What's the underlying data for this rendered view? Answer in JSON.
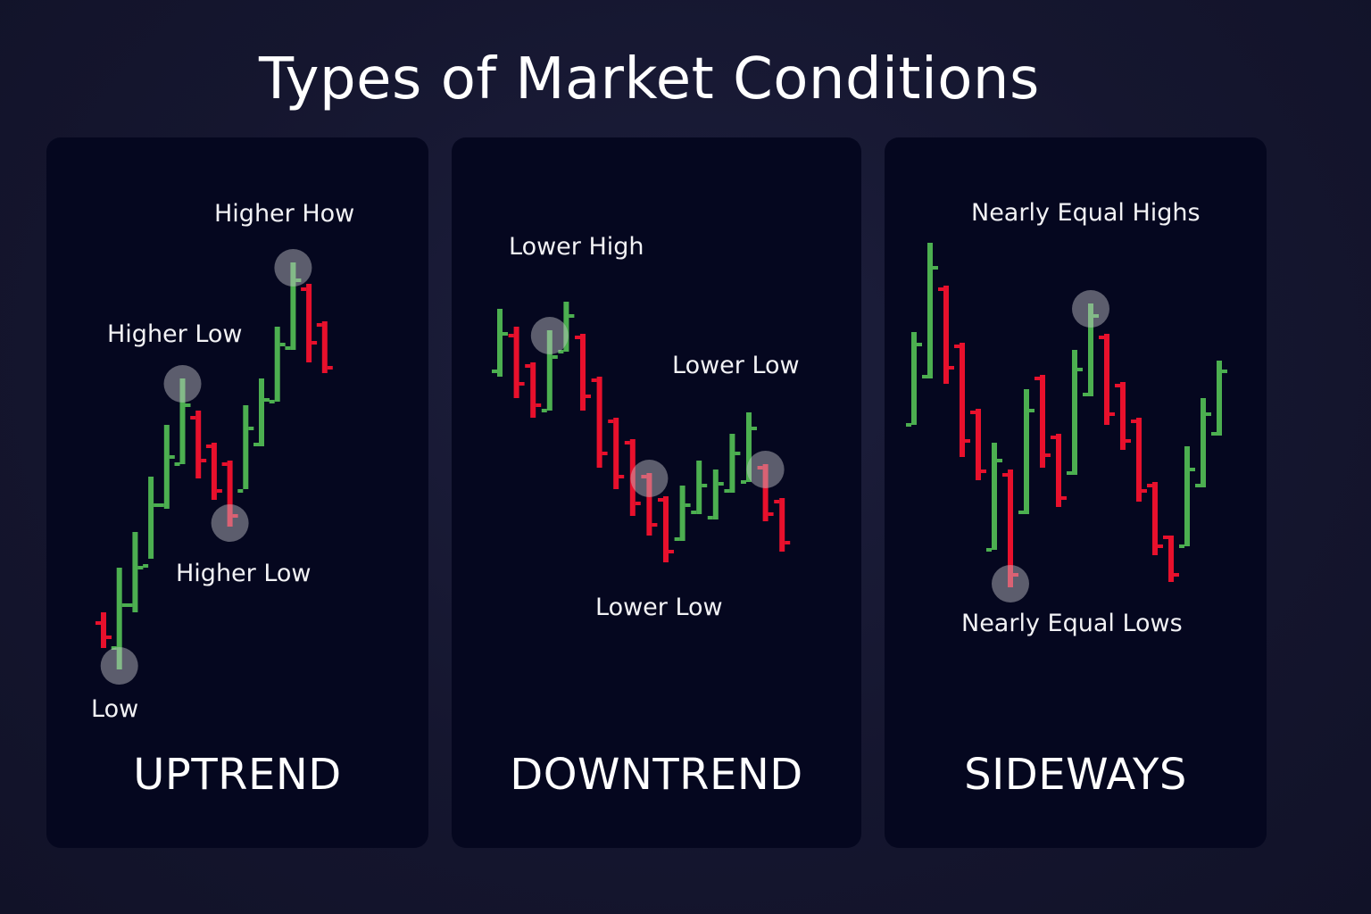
{
  "title": "Types of Market Conditions",
  "colors": {
    "up": "#4caf50",
    "down": "#e8102c",
    "marker": "rgba(200,200,205,0.45)"
  },
  "panels": [
    {
      "id": "uptrend",
      "label": "UPTREND",
      "annotations": [
        "Higher How",
        "Higher Low",
        "Higher Low",
        "Low"
      ],
      "bars": [
        {
          "d": "down",
          "h": 532,
          "l": 572,
          "o": 544,
          "c": 560
        },
        {
          "d": "up",
          "h": 482,
          "l": 596,
          "o": 572,
          "c": 524
        },
        {
          "d": "up",
          "h": 442,
          "l": 532,
          "o": 524,
          "c": 482
        },
        {
          "d": "up",
          "h": 380,
          "l": 472,
          "o": 480,
          "c": 412
        },
        {
          "d": "up",
          "h": 322,
          "l": 416,
          "o": 412,
          "c": 358
        },
        {
          "d": "up",
          "h": 270,
          "l": 366,
          "o": 366,
          "c": 300
        },
        {
          "d": "down",
          "h": 306,
          "l": 382,
          "o": 314,
          "c": 362
        },
        {
          "d": "down",
          "h": 342,
          "l": 406,
          "o": 346,
          "c": 396
        },
        {
          "d": "down",
          "h": 362,
          "l": 436,
          "o": 366,
          "c": 424
        },
        {
          "d": "up",
          "h": 300,
          "l": 394,
          "o": 396,
          "c": 326
        },
        {
          "d": "up",
          "h": 270,
          "l": 346,
          "o": 344,
          "c": 294
        },
        {
          "d": "up",
          "h": 212,
          "l": 296,
          "o": 296,
          "c": 232
        },
        {
          "d": "up",
          "h": 140,
          "l": 238,
          "o": 236,
          "c": 160
        },
        {
          "d": "down",
          "h": 164,
          "l": 252,
          "o": 170,
          "c": 230
        },
        {
          "d": "down",
          "h": 206,
          "l": 264,
          "o": 210,
          "c": 258
        }
      ],
      "markers": [
        1,
        5,
        8,
        12
      ]
    },
    {
      "id": "downtrend",
      "label": "DOWNTREND",
      "annotations": [
        "Lower High",
        "Lower Low",
        "Lower Low"
      ],
      "bars": [
        {
          "d": "up",
          "h": 192,
          "l": 268,
          "o": 262,
          "c": 220
        },
        {
          "d": "down",
          "h": 212,
          "l": 292,
          "o": 222,
          "c": 276
        },
        {
          "d": "down",
          "h": 252,
          "l": 314,
          "o": 256,
          "c": 300
        },
        {
          "d": "up",
          "h": 216,
          "l": 306,
          "o": 306,
          "c": 246
        },
        {
          "d": "up",
          "h": 184,
          "l": 240,
          "o": 240,
          "c": 200
        },
        {
          "d": "down",
          "h": 220,
          "l": 306,
          "o": 224,
          "c": 290
        },
        {
          "d": "down",
          "h": 268,
          "l": 370,
          "o": 272,
          "c": 354
        },
        {
          "d": "down",
          "h": 314,
          "l": 394,
          "o": 318,
          "c": 380
        },
        {
          "d": "down",
          "h": 338,
          "l": 424,
          "o": 342,
          "c": 410
        },
        {
          "d": "down",
          "h": 376,
          "l": 446,
          "o": 380,
          "c": 434
        },
        {
          "d": "down",
          "h": 402,
          "l": 476,
          "o": 406,
          "c": 464
        },
        {
          "d": "up",
          "h": 390,
          "l": 452,
          "o": 450,
          "c": 412
        },
        {
          "d": "up",
          "h": 362,
          "l": 422,
          "o": 420,
          "c": 390
        },
        {
          "d": "up",
          "h": 372,
          "l": 428,
          "o": 426,
          "c": 388
        },
        {
          "d": "up",
          "h": 332,
          "l": 398,
          "o": 396,
          "c": 354
        },
        {
          "d": "up",
          "h": 308,
          "l": 386,
          "o": 386,
          "c": 326
        },
        {
          "d": "down",
          "h": 366,
          "l": 430,
          "o": 370,
          "c": 422
        },
        {
          "d": "down",
          "h": 404,
          "l": 464,
          "o": 408,
          "c": 454
        }
      ],
      "markers": [
        3,
        9,
        16
      ]
    },
    {
      "id": "sideways",
      "label": "SIDEWAYS",
      "annotations": [
        "Nearly Equal Highs",
        "Nearly Equal Lows"
      ],
      "bars": [
        {
          "d": "up",
          "h": 218,
          "l": 322,
          "o": 322,
          "c": 232
        },
        {
          "d": "up",
          "h": 118,
          "l": 270,
          "o": 268,
          "c": 146
        },
        {
          "d": "down",
          "h": 166,
          "l": 276,
          "o": 170,
          "c": 258
        },
        {
          "d": "down",
          "h": 230,
          "l": 358,
          "o": 234,
          "c": 340
        },
        {
          "d": "down",
          "h": 304,
          "l": 384,
          "o": 308,
          "c": 374
        },
        {
          "d": "up",
          "h": 342,
          "l": 462,
          "o": 462,
          "c": 362
        },
        {
          "d": "down",
          "h": 372,
          "l": 504,
          "o": 378,
          "c": 490
        },
        {
          "d": "up",
          "h": 282,
          "l": 422,
          "o": 420,
          "c": 306
        },
        {
          "d": "down",
          "h": 266,
          "l": 370,
          "o": 270,
          "c": 356
        },
        {
          "d": "down",
          "h": 332,
          "l": 414,
          "o": 336,
          "c": 404
        },
        {
          "d": "up",
          "h": 238,
          "l": 378,
          "o": 376,
          "c": 260
        },
        {
          "d": "up",
          "h": 186,
          "l": 290,
          "o": 288,
          "c": 200
        },
        {
          "d": "down",
          "h": 220,
          "l": 322,
          "o": 224,
          "c": 310
        },
        {
          "d": "down",
          "h": 274,
          "l": 350,
          "o": 278,
          "c": 340
        },
        {
          "d": "down",
          "h": 314,
          "l": 408,
          "o": 318,
          "c": 396
        },
        {
          "d": "down",
          "h": 386,
          "l": 468,
          "o": 390,
          "c": 458
        },
        {
          "d": "down",
          "h": 446,
          "l": 498,
          "o": 448,
          "c": 490
        },
        {
          "d": "up",
          "h": 346,
          "l": 458,
          "o": 458,
          "c": 372
        },
        {
          "d": "up",
          "h": 292,
          "l": 392,
          "o": 390,
          "c": 310
        },
        {
          "d": "up",
          "h": 250,
          "l": 334,
          "o": 332,
          "c": 262
        }
      ],
      "markers": [
        6,
        11
      ]
    }
  ]
}
